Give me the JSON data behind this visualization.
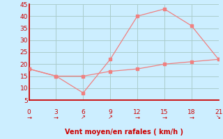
{
  "x": [
    0,
    3,
    6,
    9,
    12,
    15,
    18,
    21
  ],
  "y_rafales": [
    18,
    15,
    8,
    22,
    40,
    43,
    36,
    22
  ],
  "y_moyen": [
    18,
    15,
    15,
    17,
    18,
    20,
    21,
    22
  ],
  "wind_arrows": [
    "→",
    "→",
    "↗",
    "↗",
    "→",
    "→",
    "→",
    "↘"
  ],
  "line_color": "#f08080",
  "marker_color": "#f08080",
  "bg_color": "#cceeff",
  "grid_color": "#aacccc",
  "axis_label": "Vent moyen/en rafales ( km/h )",
  "xlabel_color": "#cc0000",
  "tick_color": "#cc0000",
  "axis_color": "#cc0000",
  "ylim": [
    5,
    45
  ],
  "xlim": [
    0,
    21
  ],
  "yticks": [
    5,
    10,
    15,
    20,
    25,
    30,
    35,
    40,
    45
  ],
  "xticks": [
    0,
    3,
    6,
    9,
    12,
    15,
    18,
    21
  ]
}
